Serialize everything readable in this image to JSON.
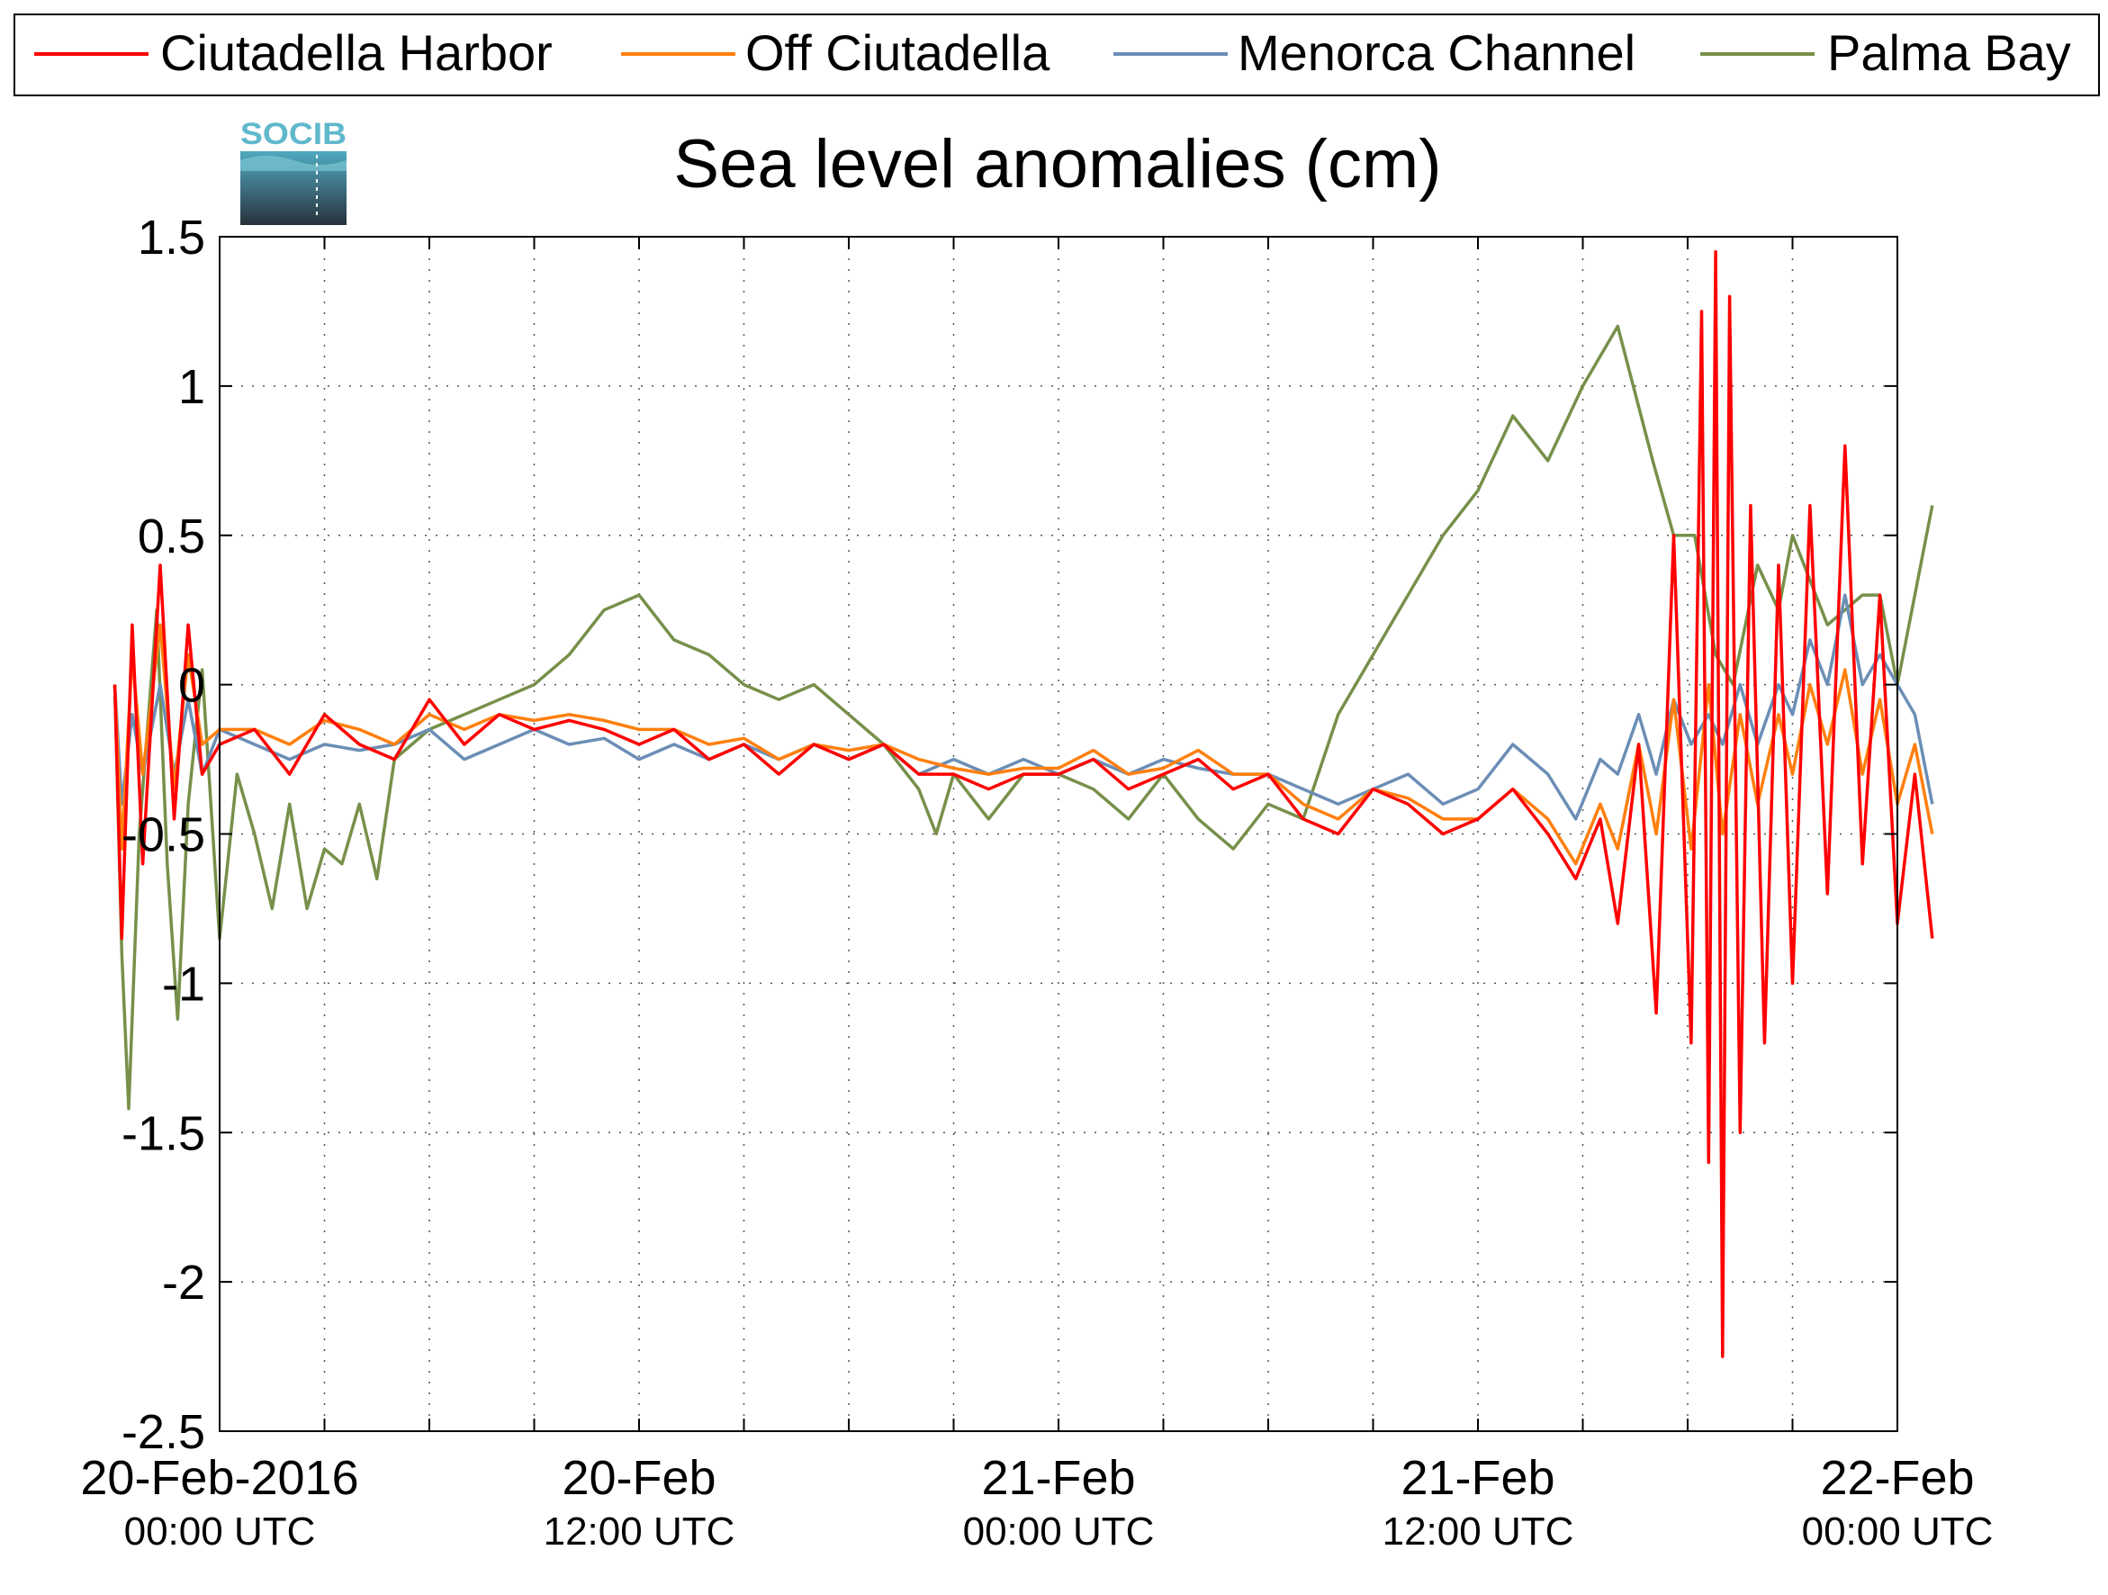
{
  "chart_data": {
    "type": "line",
    "title": "Sea level anomalies (cm)",
    "xlabel": "",
    "ylabel": "",
    "logo_text": "SOCIB",
    "ylim": [
      -2.5,
      1.5
    ],
    "xlim_hours": [
      0,
      48
    ],
    "y_ticks": [
      1.5,
      1,
      0.5,
      0,
      -0.5,
      -1,
      -1.5,
      -2,
      -2.5
    ],
    "y_tick_labels": [
      "1.5",
      "1",
      "0.5",
      "0",
      "-0.5",
      "-1",
      "-1.5",
      "-2",
      "-2.5"
    ],
    "x_tick_labels": [
      {
        "hours": 0,
        "date": "20-Feb-2016",
        "time": "00:00 UTC"
      },
      {
        "hours": 12,
        "date": "20-Feb",
        "time": "12:00 UTC"
      },
      {
        "hours": 24,
        "date": "21-Feb",
        "time": "00:00 UTC"
      },
      {
        "hours": 36,
        "date": "21-Feb",
        "time": "12:00 UTC"
      },
      {
        "hours": 48,
        "date": "22-Feb",
        "time": "00:00 UTC"
      }
    ],
    "grid": true,
    "legend_position": "top",
    "series": [
      {
        "name": "Ciutadella Harbor",
        "color": "#ff0000",
        "points": [
          [
            -3,
            0.0
          ],
          [
            -2.8,
            -0.85
          ],
          [
            -2.5,
            0.2
          ],
          [
            -2.2,
            -0.6
          ],
          [
            -1.7,
            0.4
          ],
          [
            -1.3,
            -0.45
          ],
          [
            -0.9,
            0.2
          ],
          [
            -0.5,
            -0.3
          ],
          [
            0,
            -0.2
          ],
          [
            1,
            -0.15
          ],
          [
            2,
            -0.3
          ],
          [
            3,
            -0.1
          ],
          [
            4,
            -0.2
          ],
          [
            5,
            -0.25
          ],
          [
            6,
            -0.05
          ],
          [
            7,
            -0.2
          ],
          [
            8,
            -0.1
          ],
          [
            9,
            -0.15
          ],
          [
            10,
            -0.12
          ],
          [
            11,
            -0.15
          ],
          [
            12,
            -0.2
          ],
          [
            13,
            -0.15
          ],
          [
            14,
            -0.25
          ],
          [
            15,
            -0.2
          ],
          [
            16,
            -0.3
          ],
          [
            17,
            -0.2
          ],
          [
            18,
            -0.25
          ],
          [
            19,
            -0.2
          ],
          [
            20,
            -0.3
          ],
          [
            21,
            -0.3
          ],
          [
            22,
            -0.35
          ],
          [
            23,
            -0.3
          ],
          [
            24,
            -0.3
          ],
          [
            25,
            -0.25
          ],
          [
            26,
            -0.35
          ],
          [
            27,
            -0.3
          ],
          [
            28,
            -0.25
          ],
          [
            29,
            -0.35
          ],
          [
            30,
            -0.3
          ],
          [
            31,
            -0.45
          ],
          [
            32,
            -0.5
          ],
          [
            33,
            -0.35
          ],
          [
            34,
            -0.4
          ],
          [
            35,
            -0.5
          ],
          [
            36,
            -0.45
          ],
          [
            37,
            -0.35
          ],
          [
            38,
            -0.5
          ],
          [
            38.8,
            -0.65
          ],
          [
            39.5,
            -0.45
          ],
          [
            40,
            -0.8
          ],
          [
            40.6,
            -0.2
          ],
          [
            41.1,
            -1.1
          ],
          [
            41.6,
            0.5
          ],
          [
            42.1,
            -1.2
          ],
          [
            42.4,
            1.25
          ],
          [
            42.6,
            -1.6
          ],
          [
            42.8,
            1.45
          ],
          [
            43.0,
            -2.25
          ],
          [
            43.2,
            1.3
          ],
          [
            43.5,
            -1.5
          ],
          [
            43.8,
            0.6
          ],
          [
            44.2,
            -1.2
          ],
          [
            44.6,
            0.4
          ],
          [
            45,
            -1.0
          ],
          [
            45.5,
            0.6
          ],
          [
            46,
            -0.7
          ],
          [
            46.5,
            0.8
          ],
          [
            47,
            -0.6
          ],
          [
            47.5,
            0.3
          ],
          [
            48,
            -0.8
          ],
          [
            48.5,
            -0.3
          ],
          [
            49,
            -0.85
          ]
        ]
      },
      {
        "name": "Off Ciutadella",
        "color": "#ff7f0e",
        "points": [
          [
            -3,
            0.0
          ],
          [
            -2.8,
            -0.55
          ],
          [
            -2.5,
            0.1
          ],
          [
            -2.2,
            -0.3
          ],
          [
            -1.7,
            0.2
          ],
          [
            -1.3,
            -0.35
          ],
          [
            -0.9,
            0.1
          ],
          [
            -0.5,
            -0.2
          ],
          [
            0,
            -0.15
          ],
          [
            1,
            -0.15
          ],
          [
            2,
            -0.2
          ],
          [
            3,
            -0.12
          ],
          [
            4,
            -0.15
          ],
          [
            5,
            -0.2
          ],
          [
            6,
            -0.1
          ],
          [
            7,
            -0.15
          ],
          [
            8,
            -0.1
          ],
          [
            9,
            -0.12
          ],
          [
            10,
            -0.1
          ],
          [
            11,
            -0.12
          ],
          [
            12,
            -0.15
          ],
          [
            13,
            -0.15
          ],
          [
            14,
            -0.2
          ],
          [
            15,
            -0.18
          ],
          [
            16,
            -0.25
          ],
          [
            17,
            -0.2
          ],
          [
            18,
            -0.22
          ],
          [
            19,
            -0.2
          ],
          [
            20,
            -0.25
          ],
          [
            21,
            -0.28
          ],
          [
            22,
            -0.3
          ],
          [
            23,
            -0.28
          ],
          [
            24,
            -0.28
          ],
          [
            25,
            -0.22
          ],
          [
            26,
            -0.3
          ],
          [
            27,
            -0.28
          ],
          [
            28,
            -0.22
          ],
          [
            29,
            -0.3
          ],
          [
            30,
            -0.3
          ],
          [
            31,
            -0.4
          ],
          [
            32,
            -0.45
          ],
          [
            33,
            -0.35
          ],
          [
            34,
            -0.38
          ],
          [
            35,
            -0.45
          ],
          [
            36,
            -0.45
          ],
          [
            37,
            -0.35
          ],
          [
            38,
            -0.45
          ],
          [
            38.8,
            -0.6
          ],
          [
            39.5,
            -0.4
          ],
          [
            40,
            -0.55
          ],
          [
            40.6,
            -0.2
          ],
          [
            41.1,
            -0.5
          ],
          [
            41.6,
            -0.05
          ],
          [
            42.1,
            -0.55
          ],
          [
            42.6,
            0.0
          ],
          [
            43.0,
            -0.5
          ],
          [
            43.5,
            -0.1
          ],
          [
            44,
            -0.4
          ],
          [
            44.6,
            -0.1
          ],
          [
            45,
            -0.3
          ],
          [
            45.5,
            0.0
          ],
          [
            46,
            -0.2
          ],
          [
            46.5,
            0.05
          ],
          [
            47,
            -0.3
          ],
          [
            47.5,
            -0.05
          ],
          [
            48,
            -0.4
          ],
          [
            48.5,
            -0.2
          ],
          [
            49,
            -0.5
          ]
        ]
      },
      {
        "name": "Menorca Channel",
        "color": "#6b8eb5",
        "points": [
          [
            -3,
            0.0
          ],
          [
            -2.8,
            -0.4
          ],
          [
            -2.5,
            -0.1
          ],
          [
            -2.2,
            -0.3
          ],
          [
            -1.7,
            0.0
          ],
          [
            -1.3,
            -0.3
          ],
          [
            -0.9,
            -0.05
          ],
          [
            -0.5,
            -0.3
          ],
          [
            0,
            -0.15
          ],
          [
            1,
            -0.2
          ],
          [
            2,
            -0.25
          ],
          [
            3,
            -0.2
          ],
          [
            4,
            -0.22
          ],
          [
            5,
            -0.2
          ],
          [
            6,
            -0.15
          ],
          [
            7,
            -0.25
          ],
          [
            8,
            -0.2
          ],
          [
            9,
            -0.15
          ],
          [
            10,
            -0.2
          ],
          [
            11,
            -0.18
          ],
          [
            12,
            -0.25
          ],
          [
            13,
            -0.2
          ],
          [
            14,
            -0.25
          ],
          [
            15,
            -0.2
          ],
          [
            16,
            -0.25
          ],
          [
            17,
            -0.2
          ],
          [
            18,
            -0.25
          ],
          [
            19,
            -0.2
          ],
          [
            20,
            -0.3
          ],
          [
            21,
            -0.25
          ],
          [
            22,
            -0.3
          ],
          [
            23,
            -0.25
          ],
          [
            24,
            -0.3
          ],
          [
            25,
            -0.25
          ],
          [
            26,
            -0.3
          ],
          [
            27,
            -0.25
          ],
          [
            28,
            -0.28
          ],
          [
            29,
            -0.3
          ],
          [
            30,
            -0.3
          ],
          [
            31,
            -0.35
          ],
          [
            32,
            -0.4
          ],
          [
            33,
            -0.35
          ],
          [
            34,
            -0.3
          ],
          [
            35,
            -0.4
          ],
          [
            36,
            -0.35
          ],
          [
            37,
            -0.2
          ],
          [
            38,
            -0.3
          ],
          [
            38.8,
            -0.45
          ],
          [
            39.5,
            -0.25
          ],
          [
            40,
            -0.3
          ],
          [
            40.6,
            -0.1
          ],
          [
            41.1,
            -0.3
          ],
          [
            41.6,
            -0.05
          ],
          [
            42.1,
            -0.2
          ],
          [
            42.6,
            -0.1
          ],
          [
            43.0,
            -0.2
          ],
          [
            43.5,
            0.0
          ],
          [
            44,
            -0.2
          ],
          [
            44.6,
            0.0
          ],
          [
            45,
            -0.1
          ],
          [
            45.5,
            0.15
          ],
          [
            46,
            0.0
          ],
          [
            46.5,
            0.3
          ],
          [
            47,
            0.0
          ],
          [
            47.5,
            0.1
          ],
          [
            48,
            0.0
          ],
          [
            48.5,
            -0.1
          ],
          [
            49,
            -0.4
          ]
        ]
      },
      {
        "name": "Palma Bay",
        "color": "#77904a",
        "points": [
          [
            -3,
            0.0
          ],
          [
            -2.8,
            -0.9
          ],
          [
            -2.6,
            -1.42
          ],
          [
            -2.3,
            -0.5
          ],
          [
            -1.8,
            0.25
          ],
          [
            -1.5,
            -0.6
          ],
          [
            -1.2,
            -1.12
          ],
          [
            -0.9,
            -0.4
          ],
          [
            -0.5,
            0.05
          ],
          [
            0,
            -0.85
          ],
          [
            0.5,
            -0.3
          ],
          [
            1,
            -0.5
          ],
          [
            1.5,
            -0.75
          ],
          [
            2,
            -0.4
          ],
          [
            2.5,
            -0.75
          ],
          [
            3,
            -0.55
          ],
          [
            3.5,
            -0.6
          ],
          [
            4,
            -0.4
          ],
          [
            4.5,
            -0.65
          ],
          [
            5,
            -0.25
          ],
          [
            5.5,
            -0.2
          ],
          [
            6,
            -0.15
          ],
          [
            7,
            -0.1
          ],
          [
            8,
            -0.05
          ],
          [
            9,
            0.0
          ],
          [
            10,
            0.1
          ],
          [
            11,
            0.25
          ],
          [
            12,
            0.3
          ],
          [
            13,
            0.15
          ],
          [
            14,
            0.1
          ],
          [
            15,
            0.0
          ],
          [
            16,
            -0.05
          ],
          [
            17,
            0.0
          ],
          [
            18,
            -0.1
          ],
          [
            19,
            -0.2
          ],
          [
            20,
            -0.35
          ],
          [
            20.5,
            -0.5
          ],
          [
            21,
            -0.3
          ],
          [
            22,
            -0.45
          ],
          [
            23,
            -0.3
          ],
          [
            24,
            -0.3
          ],
          [
            25,
            -0.35
          ],
          [
            26,
            -0.45
          ],
          [
            27,
            -0.3
          ],
          [
            28,
            -0.45
          ],
          [
            29,
            -0.55
          ],
          [
            30,
            -0.4
          ],
          [
            31,
            -0.45
          ],
          [
            32,
            -0.1
          ],
          [
            33,
            0.1
          ],
          [
            34,
            0.3
          ],
          [
            35,
            0.5
          ],
          [
            36,
            0.65
          ],
          [
            37,
            0.9
          ],
          [
            38,
            0.75
          ],
          [
            39,
            1.0
          ],
          [
            40,
            1.2
          ],
          [
            41,
            0.75
          ],
          [
            41.6,
            0.5
          ],
          [
            42.2,
            0.5
          ],
          [
            42.8,
            0.1
          ],
          [
            43.3,
            0.0
          ],
          [
            44,
            0.4
          ],
          [
            44.6,
            0.25
          ],
          [
            45,
            0.5
          ],
          [
            46,
            0.2
          ],
          [
            47,
            0.3
          ],
          [
            47.5,
            0.3
          ],
          [
            48,
            0.0
          ],
          [
            48.5,
            0.3
          ],
          [
            49,
            0.6
          ]
        ]
      }
    ]
  }
}
